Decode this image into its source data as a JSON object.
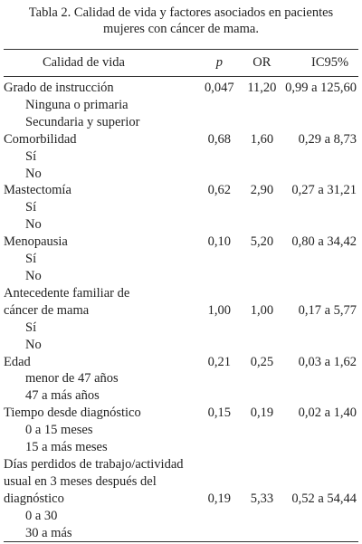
{
  "caption": [
    "Tabla 2. Calidad de vida y factores asociados en pacientes",
    "mujeres con cáncer de mama."
  ],
  "table": {
    "header": [
      "Calidad de vida",
      "p",
      "OR",
      "IC95%"
    ],
    "rows": [
      {
        "label": [
          "Grado de instrucción"
        ],
        "p": "0,047",
        "or": "11,20",
        "ic": "0,99 a 125,60",
        "levels": [
          "Ninguna o primaria",
          "Secundaria y superior"
        ]
      },
      {
        "label": [
          "Comorbilidad"
        ],
        "p": "0,68",
        "or": "1,60",
        "ic": "0,29 a 8,73",
        "levels": [
          "Sí",
          "No"
        ]
      },
      {
        "label": [
          "Mastectomía"
        ],
        "p": "0,62",
        "or": "2,90",
        "ic": "0,27 a 31,21",
        "levels": [
          "Sí",
          "No"
        ]
      },
      {
        "label": [
          "Menopausia"
        ],
        "p": "0,10",
        "or": "5,20",
        "ic": "0,80 a 34,42",
        "levels": [
          "Sí",
          "No"
        ]
      },
      {
        "label": [
          "Antecedente familiar de",
          "cáncer de mama"
        ],
        "p": "1,00",
        "or": "1,00",
        "ic": "0,17 a 5,77",
        "levels": [
          "Sí",
          "No"
        ]
      },
      {
        "label": [
          "Edad"
        ],
        "p": "0,21",
        "or": "0,25",
        "ic": "0,03 a 1,62",
        "levels": [
          "menor de 47 años",
          "47 a más años"
        ]
      },
      {
        "label": [
          "Tiempo desde diagnóstico"
        ],
        "p": "0,15",
        "or": "0,19",
        "ic": "0,02 a 1,40",
        "levels": [
          "0 a 15 meses",
          "15 a más meses"
        ]
      },
      {
        "label": [
          "Días perdidos de trabajo/actividad",
          "usual en 3 meses después del",
          "diagnóstico"
        ],
        "p": "0,19",
        "or": "5,33",
        "ic": "0,52 a 54,44",
        "levels": [
          "0 a 30",
          "30 a más"
        ]
      }
    ]
  }
}
